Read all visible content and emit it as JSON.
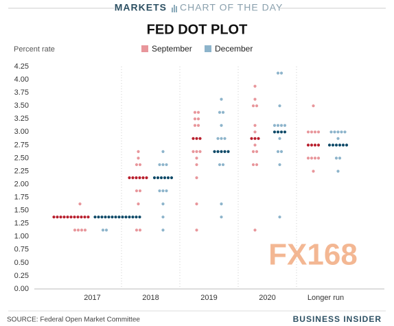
{
  "header": {
    "section": "MARKETS",
    "label": "CHART OF THE DAY"
  },
  "chart_data": {
    "type": "dot-plot",
    "title": "FED DOT PLOT",
    "y_label": "Percent rate",
    "categories": [
      "2017",
      "2018",
      "2019",
      "2020",
      "Longer run"
    ],
    "series": [
      {
        "name": "September",
        "color": "#e8969b",
        "highlight_color": "#b81f2d",
        "values": [
          [
            1.625,
            1.375,
            1.375,
            1.375,
            1.375,
            1.375,
            1.375,
            1.375,
            1.375,
            1.375,
            1.375,
            1.375,
            1.125,
            1.125,
            1.125,
            1.125
          ],
          [
            2.625,
            2.5,
            2.375,
            2.375,
            2.125,
            2.125,
            2.125,
            2.125,
            2.125,
            2.125,
            1.875,
            1.875,
            1.625,
            1.125,
            1.125
          ],
          [
            3.375,
            3.375,
            3.25,
            3.25,
            3.125,
            3.125,
            2.875,
            2.875,
            2.875,
            2.625,
            2.625,
            2.625,
            2.5,
            2.375,
            2.125,
            1.625,
            1.125
          ],
          [
            3.875,
            3.625,
            3.5,
            3.5,
            3.125,
            3.0,
            2.875,
            2.875,
            2.875,
            2.75,
            2.625,
            2.625,
            2.375,
            2.375,
            1.125
          ],
          [
            3.5,
            3.0,
            3.0,
            3.0,
            3.0,
            2.75,
            2.75,
            2.75,
            2.75,
            2.5,
            2.5,
            2.5,
            2.5,
            2.25
          ]
        ]
      },
      {
        "name": "December",
        "color": "#8db4cb",
        "highlight_color": "#0e4a68",
        "values": [
          [
            1.375,
            1.375,
            1.375,
            1.375,
            1.375,
            1.375,
            1.375,
            1.375,
            1.375,
            1.375,
            1.375,
            1.375,
            1.375,
            1.375,
            1.125,
            1.125
          ],
          [
            2.625,
            2.375,
            2.375,
            2.375,
            2.125,
            2.125,
            2.125,
            2.125,
            2.125,
            2.125,
            1.875,
            1.875,
            1.875,
            1.625,
            1.375,
            1.125
          ],
          [
            3.625,
            3.375,
            3.375,
            3.125,
            2.875,
            2.875,
            2.875,
            2.625,
            2.625,
            2.625,
            2.625,
            2.625,
            2.375,
            2.375,
            1.625,
            1.375
          ],
          [
            4.125,
            4.125,
            3.5,
            3.125,
            3.125,
            3.125,
            3.125,
            3.0,
            3.0,
            3.0,
            3.0,
            2.875,
            2.625,
            2.625,
            2.375,
            1.375
          ],
          [
            3.0,
            3.0,
            3.0,
            3.0,
            3.0,
            2.875,
            2.75,
            2.75,
            2.75,
            2.75,
            2.75,
            2.75,
            2.5,
            2.5,
            2.25
          ]
        ]
      }
    ],
    "ylim": [
      0,
      4.25
    ],
    "yticks": [
      {
        "value": 0,
        "label": "0.00"
      },
      {
        "value": 0.25,
        "label": "0.25"
      },
      {
        "value": 0.5,
        "label": "0.50"
      },
      {
        "value": 0.75,
        "label": "0.75"
      },
      {
        "value": 1,
        "label": "1.00"
      },
      {
        "value": 1.25,
        "label": "1.25"
      },
      {
        "value": 1.5,
        "label": "1.50"
      },
      {
        "value": 1.75,
        "label": "1.75"
      },
      {
        "value": 2,
        "label": "2.00"
      },
      {
        "value": 2.25,
        "label": "2.25"
      },
      {
        "value": 2.5,
        "label": "2.50"
      },
      {
        "value": 2.75,
        "label": "2.75"
      },
      {
        "value": 3,
        "label": "3.00"
      },
      {
        "value": 3.25,
        "label": "3.25"
      },
      {
        "value": 3.5,
        "label": "3.50"
      },
      {
        "value": 3.75,
        "label": "3.75"
      },
      {
        "value": 4,
        "label": "4.00"
      },
      {
        "value": 4.25,
        "label": "4.25"
      }
    ],
    "watermark": "FX168"
  },
  "footer": {
    "source": "SOURCE: Federal Open Market Committee",
    "brand": "BUSINESS INSIDER"
  }
}
